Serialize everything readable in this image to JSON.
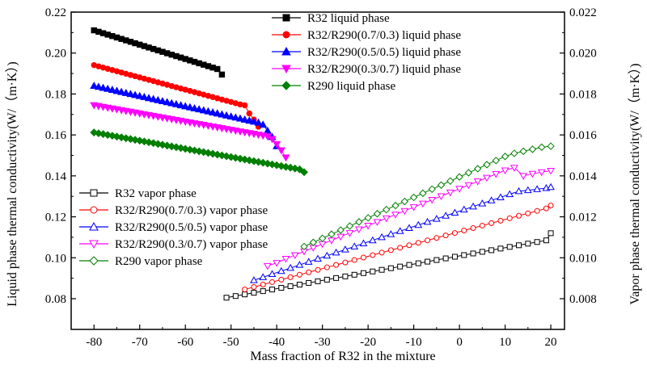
{
  "chart_data": {
    "type": "scatter",
    "xlabel": "Mass fraction of R32 in the mixture",
    "ylabel_left": "Liquid phase thermal conductivity(W/（m·K）)",
    "ylabel_right": "Vapor phase thermal conductivity(W/（m·K）)",
    "xlim": [
      -85,
      23
    ],
    "ylim_left": [
      0.065,
      0.22
    ],
    "ylim_right": [
      0.0065,
      0.022
    ],
    "x_ticks": [
      -80,
      -70,
      -60,
      -50,
      -40,
      -30,
      -20,
      -10,
      0,
      10,
      20
    ],
    "y_ticks_left": [
      0.08,
      0.1,
      0.12,
      0.14,
      0.16,
      0.18,
      0.2,
      0.22
    ],
    "y_ticks_right": [
      0.008,
      0.01,
      0.012,
      0.014,
      0.016,
      0.018,
      0.02,
      0.022
    ],
    "x_tick_labels": [
      "-80",
      "-70",
      "-60",
      "-50",
      "-40",
      "-30",
      "-20",
      "-10",
      "0",
      "10",
      "20"
    ],
    "y_tick_labels_left": [
      "0.08",
      "0.10",
      "0.12",
      "0.14",
      "0.16",
      "0.18",
      "0.20",
      "0.22"
    ],
    "y_tick_labels_right": [
      "0.008",
      "0.010",
      "0.012",
      "0.014",
      "0.016",
      "0.018",
      "0.020",
      "0.022"
    ],
    "legend_liquid": "top-center",
    "legend_vapor": "middle-left",
    "series": [
      {
        "name": "R32 liquid phase",
        "axis": "left",
        "color": "#000000",
        "marker": "square",
        "filled": true,
        "x": [
          -80,
          -79,
          -78,
          -77,
          -76,
          -75,
          -74,
          -73,
          -72,
          -71,
          -70,
          -69,
          -68,
          -67,
          -66,
          -65,
          -64,
          -63,
          -62,
          -61,
          -60,
          -59,
          -58,
          -57,
          -56,
          -55,
          -54,
          -53,
          -52
        ],
        "y": [
          0.2111,
          0.2104,
          0.2097,
          0.209,
          0.2083,
          0.2076,
          0.2069,
          0.2062,
          0.2055,
          0.2048,
          0.2041,
          0.2034,
          0.2027,
          0.202,
          0.2013,
          0.2006,
          0.1999,
          0.1992,
          0.1985,
          0.1978,
          0.1971,
          0.1964,
          0.1957,
          0.195,
          0.1943,
          0.1936,
          0.1929,
          0.1922,
          0.1895
        ]
      },
      {
        "name": "R32/R290(0.7/0.3) liquid phase",
        "axis": "left",
        "color": "#ff0000",
        "marker": "circle",
        "filled": true,
        "x": [
          -80,
          -79,
          -78,
          -77,
          -76,
          -75,
          -74,
          -73,
          -72,
          -71,
          -70,
          -69,
          -68,
          -67,
          -66,
          -65,
          -64,
          -63,
          -62,
          -61,
          -60,
          -59,
          -58,
          -57,
          -56,
          -55,
          -54,
          -53,
          -52,
          -51,
          -50,
          -49,
          -48,
          -47,
          -46,
          -45,
          -44
        ],
        "y": [
          0.1941,
          0.1935,
          0.1929,
          0.1923,
          0.1917,
          0.1911,
          0.1905,
          0.1899,
          0.1893,
          0.1887,
          0.1881,
          0.1875,
          0.1869,
          0.1863,
          0.1857,
          0.1851,
          0.1845,
          0.1839,
          0.1833,
          0.1827,
          0.1821,
          0.1815,
          0.1809,
          0.1803,
          0.1797,
          0.1791,
          0.1785,
          0.1779,
          0.1773,
          0.1767,
          0.1761,
          0.1755,
          0.1749,
          0.1745,
          0.1705,
          0.1675,
          0.164
        ]
      },
      {
        "name": "R32/R290(0.5/0.5) liquid phase",
        "axis": "left",
        "color": "#0000ff",
        "marker": "triangle-up",
        "filled": true,
        "x": [
          -80,
          -79,
          -78,
          -77,
          -76,
          -75,
          -74,
          -73,
          -72,
          -71,
          -70,
          -69,
          -68,
          -67,
          -66,
          -65,
          -64,
          -63,
          -62,
          -61,
          -60,
          -59,
          -58,
          -57,
          -56,
          -55,
          -54,
          -53,
          -52,
          -51,
          -50,
          -49,
          -48,
          -47,
          -46,
          -45,
          -44,
          -43,
          -42,
          -41,
          -40
        ],
        "y": [
          0.184,
          0.1835,
          0.183,
          0.1825,
          0.182,
          0.1815,
          0.181,
          0.1805,
          0.18,
          0.1795,
          0.179,
          0.1785,
          0.178,
          0.1775,
          0.177,
          0.1765,
          0.176,
          0.1755,
          0.175,
          0.1745,
          0.174,
          0.1735,
          0.173,
          0.1725,
          0.172,
          0.1715,
          0.171,
          0.1705,
          0.17,
          0.1695,
          0.169,
          0.1685,
          0.168,
          0.1675,
          0.167,
          0.1665,
          0.166,
          0.165,
          0.162,
          0.159,
          0.1545
        ]
      },
      {
        "name": "R32/R290(0.3/0.7) liquid phase",
        "axis": "left",
        "color": "#ff00ff",
        "marker": "triangle-down",
        "filled": true,
        "x": [
          -80,
          -79,
          -78,
          -77,
          -76,
          -75,
          -74,
          -73,
          -72,
          -71,
          -70,
          -69,
          -68,
          -67,
          -66,
          -65,
          -64,
          -63,
          -62,
          -61,
          -60,
          -59,
          -58,
          -57,
          -56,
          -55,
          -54,
          -53,
          -52,
          -51,
          -50,
          -49,
          -48,
          -47,
          -46,
          -45,
          -44,
          -43,
          -42,
          -41,
          -40,
          -39,
          -38
        ],
        "y": [
          0.1745,
          0.1741,
          0.1737,
          0.1733,
          0.1729,
          0.1725,
          0.1721,
          0.1717,
          0.1713,
          0.1709,
          0.1705,
          0.1701,
          0.1697,
          0.1693,
          0.1689,
          0.1685,
          0.1681,
          0.1677,
          0.1673,
          0.1669,
          0.1665,
          0.1661,
          0.1657,
          0.1653,
          0.1649,
          0.1645,
          0.1641,
          0.1637,
          0.1633,
          0.1629,
          0.1625,
          0.1621,
          0.1617,
          0.1613,
          0.1609,
          0.1605,
          0.1601,
          0.1597,
          0.1593,
          0.158,
          0.1555,
          0.1525,
          0.149
        ]
      },
      {
        "name": "R290 liquid phase",
        "axis": "left",
        "color": "#007f00",
        "marker": "diamond",
        "filled": true,
        "x": [
          -80,
          -79,
          -78,
          -77,
          -76,
          -75,
          -74,
          -73,
          -72,
          -71,
          -70,
          -69,
          -68,
          -67,
          -66,
          -65,
          -64,
          -63,
          -62,
          -61,
          -60,
          -59,
          -58,
          -57,
          -56,
          -55,
          -54,
          -53,
          -52,
          -51,
          -50,
          -49,
          -48,
          -47,
          -46,
          -45,
          -44,
          -43,
          -42,
          -41,
          -40,
          -39,
          -38,
          -37,
          -36,
          -35,
          -34
        ],
        "y": [
          0.1612,
          0.1608,
          0.1604,
          0.16,
          0.1596,
          0.1592,
          0.1588,
          0.1584,
          0.158,
          0.1576,
          0.1572,
          0.1568,
          0.1564,
          0.156,
          0.1556,
          0.1552,
          0.1548,
          0.1544,
          0.154,
          0.1536,
          0.1532,
          0.1528,
          0.1524,
          0.152,
          0.1516,
          0.1512,
          0.1508,
          0.1504,
          0.15,
          0.1496,
          0.1492,
          0.1488,
          0.1484,
          0.148,
          0.1476,
          0.1472,
          0.1468,
          0.1464,
          0.146,
          0.1456,
          0.1452,
          0.1448,
          0.1444,
          0.144,
          0.1436,
          0.1432,
          0.1418
        ]
      },
      {
        "name": "R32 vapor phase",
        "axis": "right",
        "color": "#000000",
        "marker": "square",
        "filled": false,
        "x": [
          -51,
          -49,
          -47,
          -45,
          -43,
          -41,
          -39,
          -37,
          -35,
          -33,
          -31,
          -29,
          -27,
          -25,
          -23,
          -21,
          -19,
          -17,
          -15,
          -13,
          -11,
          -9,
          -7,
          -5,
          -3,
          -1,
          1,
          3,
          5,
          7,
          9,
          11,
          13,
          15,
          17,
          19,
          20
        ],
        "y": [
          0.00805,
          0.00813,
          0.00821,
          0.00829,
          0.00837,
          0.00845,
          0.00853,
          0.00861,
          0.00869,
          0.00877,
          0.00885,
          0.00893,
          0.00901,
          0.00909,
          0.00917,
          0.00925,
          0.00933,
          0.00941,
          0.00949,
          0.00957,
          0.00965,
          0.00973,
          0.00981,
          0.00989,
          0.00997,
          0.01005,
          0.01013,
          0.01021,
          0.01029,
          0.01037,
          0.01045,
          0.01053,
          0.01061,
          0.01069,
          0.01077,
          0.01085,
          0.0112
        ]
      },
      {
        "name": "R32/R290(0.7/0.3) vapor phase",
        "axis": "right",
        "color": "#ff0000",
        "marker": "circle",
        "filled": false,
        "x": [
          -47,
          -45,
          -43,
          -41,
          -39,
          -37,
          -35,
          -33,
          -31,
          -29,
          -27,
          -25,
          -23,
          -21,
          -19,
          -17,
          -15,
          -13,
          -11,
          -9,
          -7,
          -5,
          -3,
          -1,
          1,
          3,
          5,
          7,
          9,
          11,
          13,
          15,
          17,
          19,
          20
        ],
        "y": [
          0.00845,
          0.00857,
          0.00869,
          0.00881,
          0.00893,
          0.00905,
          0.00917,
          0.00929,
          0.00941,
          0.00953,
          0.00965,
          0.00977,
          0.00989,
          0.01001,
          0.01013,
          0.01025,
          0.01037,
          0.01049,
          0.01061,
          0.01073,
          0.01085,
          0.01097,
          0.01109,
          0.01121,
          0.01133,
          0.01145,
          0.01157,
          0.01169,
          0.01181,
          0.01193,
          0.01205,
          0.01217,
          0.01229,
          0.01241,
          0.01255
        ]
      },
      {
        "name": "R32/R290(0.5/0.5) vapor phase",
        "axis": "right",
        "color": "#0000ff",
        "marker": "triangle-up",
        "filled": false,
        "x": [
          -45,
          -43,
          -41,
          -39,
          -37,
          -35,
          -33,
          -31,
          -29,
          -27,
          -25,
          -23,
          -21,
          -19,
          -17,
          -15,
          -13,
          -11,
          -9,
          -7,
          -5,
          -3,
          -1,
          1,
          3,
          5,
          7,
          9,
          11,
          13,
          15,
          17,
          19,
          20
        ],
        "y": [
          0.0089,
          0.00905,
          0.0092,
          0.00935,
          0.0095,
          0.00965,
          0.0098,
          0.00995,
          0.0101,
          0.01025,
          0.0104,
          0.01055,
          0.0107,
          0.01085,
          0.011,
          0.01115,
          0.0113,
          0.01145,
          0.0116,
          0.01175,
          0.0119,
          0.01205,
          0.0122,
          0.01235,
          0.0125,
          0.01265,
          0.0128,
          0.01295,
          0.0131,
          0.01325,
          0.0133,
          0.01335,
          0.0134,
          0.01345
        ]
      },
      {
        "name": "R32/R290(0.3/0.7) vapor phase",
        "axis": "right",
        "color": "#ff00ff",
        "marker": "triangle-down",
        "filled": false,
        "x": [
          -42,
          -40,
          -38,
          -36,
          -34,
          -32,
          -30,
          -28,
          -26,
          -24,
          -22,
          -20,
          -18,
          -16,
          -14,
          -12,
          -10,
          -8,
          -6,
          -4,
          -2,
          0,
          2,
          4,
          6,
          8,
          10,
          12,
          14,
          16,
          18,
          20
        ],
        "y": [
          0.0096,
          0.00975,
          0.00995,
          0.01013,
          0.01031,
          0.01049,
          0.01067,
          0.01085,
          0.01103,
          0.01121,
          0.01139,
          0.01157,
          0.01175,
          0.01193,
          0.01211,
          0.01229,
          0.01247,
          0.01265,
          0.01283,
          0.01301,
          0.01319,
          0.01337,
          0.01355,
          0.01373,
          0.01391,
          0.01409,
          0.01427,
          0.0144,
          0.014,
          0.0141,
          0.01418,
          0.01425
        ]
      },
      {
        "name": "R290 vapor phase",
        "axis": "right",
        "color": "#007f00",
        "marker": "diamond",
        "filled": false,
        "x": [
          -34,
          -32,
          -30,
          -28,
          -26,
          -24,
          -22,
          -20,
          -18,
          -16,
          -14,
          -12,
          -10,
          -8,
          -6,
          -4,
          -2,
          0,
          2,
          4,
          6,
          8,
          10,
          12,
          14,
          16,
          18,
          20
        ],
        "y": [
          0.01055,
          0.01075,
          0.01095,
          0.01115,
          0.01135,
          0.01155,
          0.01175,
          0.01195,
          0.01215,
          0.01235,
          0.01255,
          0.01275,
          0.01295,
          0.01315,
          0.01335,
          0.01355,
          0.01375,
          0.01395,
          0.01415,
          0.01435,
          0.01455,
          0.01475,
          0.01495,
          0.0151,
          0.0152,
          0.0153,
          0.0154,
          0.01545
        ]
      }
    ]
  }
}
